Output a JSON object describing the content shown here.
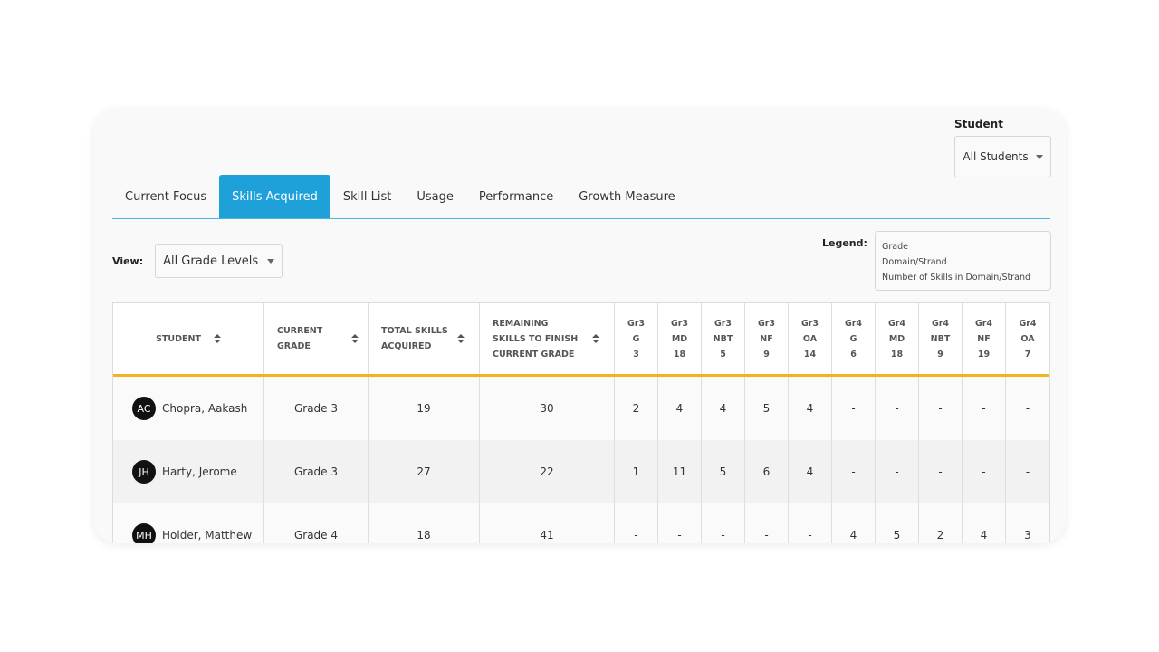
{
  "student_filter": {
    "label": "Student",
    "value": "All Students"
  },
  "tabs": [
    {
      "label": "Current Focus",
      "active": false
    },
    {
      "label": "Skills Acquired",
      "active": true
    },
    {
      "label": "Skill List",
      "active": false
    },
    {
      "label": "Usage",
      "active": false
    },
    {
      "label": "Performance",
      "active": false
    },
    {
      "label": "Growth Measure",
      "active": false
    }
  ],
  "view": {
    "label": "View:",
    "value": "All Grade Levels"
  },
  "legend": {
    "label": "Legend:",
    "lines": [
      "Grade",
      "Domain/Strand",
      "Number of Skills in Domain/Strand"
    ]
  },
  "table": {
    "headers": {
      "student": "STUDENT",
      "grade": [
        "CURRENT",
        "GRADE"
      ],
      "total": [
        "TOTAL SKILLS",
        "ACQUIRED"
      ],
      "remaining": [
        "REMAINING",
        "SKILLS TO FINISH",
        "CURRENT GRADE"
      ]
    },
    "skill_columns": [
      {
        "grade": "Gr3",
        "domain": "G",
        "count": "3"
      },
      {
        "grade": "Gr3",
        "domain": "MD",
        "count": "18"
      },
      {
        "grade": "Gr3",
        "domain": "NBT",
        "count": "5"
      },
      {
        "grade": "Gr3",
        "domain": "NF",
        "count": "9"
      },
      {
        "grade": "Gr3",
        "domain": "OA",
        "count": "14"
      },
      {
        "grade": "Gr4",
        "domain": "G",
        "count": "6"
      },
      {
        "grade": "Gr4",
        "domain": "MD",
        "count": "18"
      },
      {
        "grade": "Gr4",
        "domain": "NBT",
        "count": "9"
      },
      {
        "grade": "Gr4",
        "domain": "NF",
        "count": "19"
      },
      {
        "grade": "Gr4",
        "domain": "OA",
        "count": "7"
      }
    ],
    "rows": [
      {
        "initials": "AC",
        "name": "Chopra, Aakash",
        "grade": "Grade 3",
        "total": "19",
        "remaining": "30",
        "skills": [
          "2",
          "4",
          "4",
          "5",
          "4",
          "-",
          "-",
          "-",
          "-",
          "-"
        ]
      },
      {
        "initials": "JH",
        "name": "Harty, Jerome",
        "grade": "Grade 3",
        "total": "27",
        "remaining": "22",
        "skills": [
          "1",
          "11",
          "5",
          "6",
          "4",
          "-",
          "-",
          "-",
          "-",
          "-"
        ]
      },
      {
        "initials": "MH",
        "name": "Holder, Matthew",
        "grade": "Grade 4",
        "total": "18",
        "remaining": "41",
        "skills": [
          "-",
          "-",
          "-",
          "-",
          "-",
          "4",
          "5",
          "2",
          "4",
          "3"
        ]
      }
    ]
  },
  "colors": {
    "accent": "#1ea0d8",
    "header_underline": "#f3b31f",
    "avatar": "#111111"
  }
}
